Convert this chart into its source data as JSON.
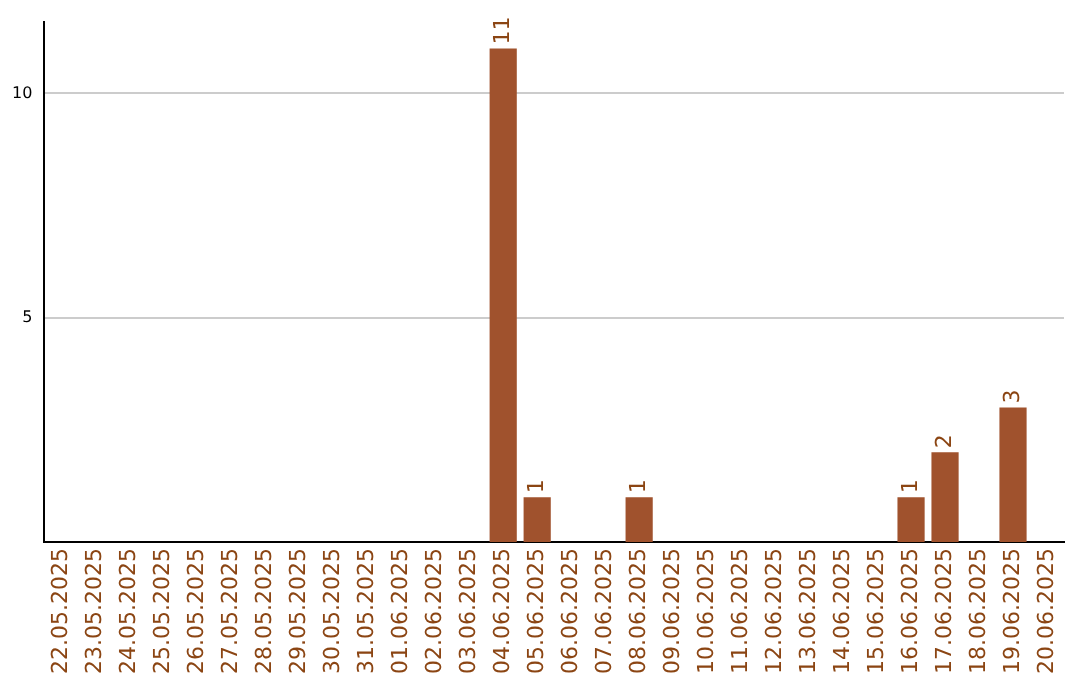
{
  "chart_data": {
    "type": "bar",
    "categories": [
      "22.05.2025",
      "23.05.2025",
      "24.05.2025",
      "25.05.2025",
      "26.05.2025",
      "27.05.2025",
      "28.05.2025",
      "29.05.2025",
      "30.05.2025",
      "31.05.2025",
      "01.06.2025",
      "02.06.2025",
      "03.06.2025",
      "04.06.2025",
      "05.06.2025",
      "06.06.2025",
      "07.06.2025",
      "08.06.2025",
      "09.06.2025",
      "10.06.2025",
      "11.06.2025",
      "12.06.2025",
      "13.06.2025",
      "14.06.2025",
      "15.06.2025",
      "16.06.2025",
      "17.06.2025",
      "18.06.2025",
      "19.06.2025",
      "20.06.2025"
    ],
    "values": [
      0,
      0,
      0,
      0,
      0,
      0,
      0,
      0,
      0,
      0,
      0,
      0,
      0,
      11,
      1,
      0,
      0,
      1,
      0,
      0,
      0,
      0,
      0,
      0,
      0,
      1,
      2,
      0,
      3,
      0
    ],
    "value_labels": [
      null,
      null,
      null,
      null,
      null,
      null,
      null,
      null,
      null,
      null,
      null,
      null,
      null,
      "11",
      "1",
      null,
      null,
      "1",
      null,
      null,
      null,
      null,
      null,
      null,
      null,
      "1",
      "2",
      null,
      "3",
      null
    ],
    "color": "#a0522d",
    "ylim": [
      0,
      11.6
    ],
    "yticks": [
      5,
      10
    ],
    "grid": "y"
  }
}
